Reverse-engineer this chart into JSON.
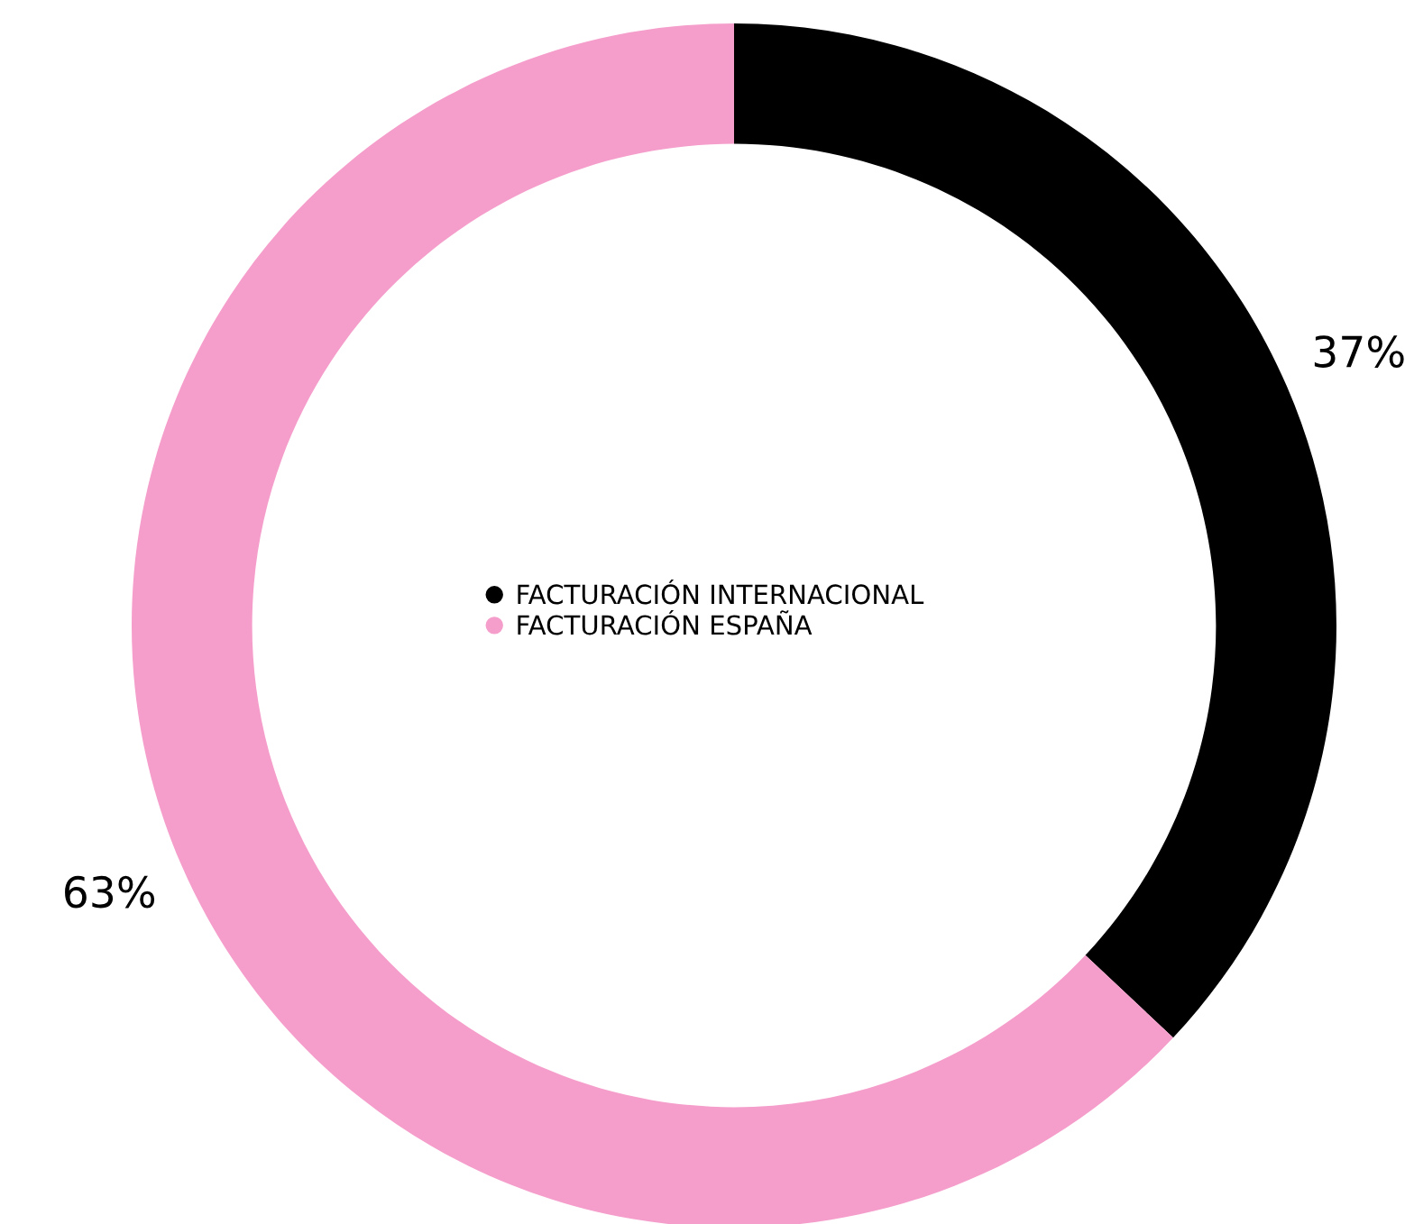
{
  "chart_data": {
    "type": "donut",
    "categories": [
      "FACTURACIÓN INTERNACIONAL",
      "FACTURACIÓN ESPAÑA"
    ],
    "values": [
      37,
      63
    ],
    "colors": [
      "#000000",
      "#f59ecb"
    ],
    "value_labels": [
      "37%",
      "63%"
    ],
    "legend": "center"
  }
}
